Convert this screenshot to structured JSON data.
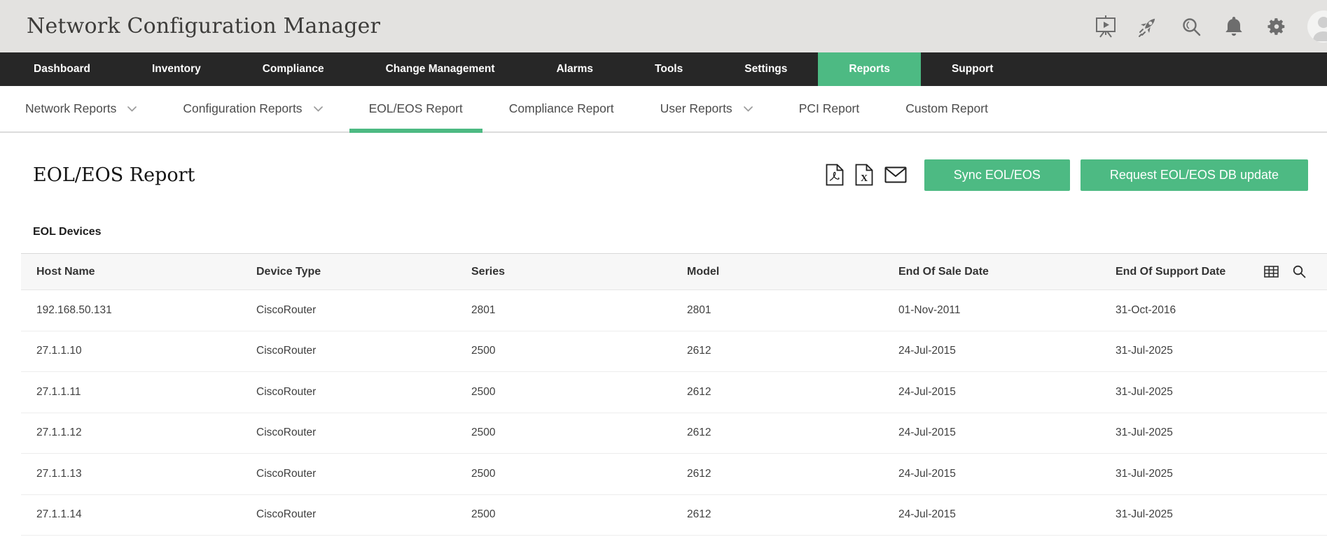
{
  "header": {
    "title": "Network Configuration Manager",
    "icon_names": [
      "demo-video-icon",
      "launch-rocket-icon",
      "global-search-icon",
      "notifications-bell-icon",
      "settings-gear-icon",
      "user-avatar"
    ]
  },
  "nav": {
    "items": [
      {
        "label": "Dashboard",
        "active": false
      },
      {
        "label": "Inventory",
        "active": false
      },
      {
        "label": "Compliance",
        "active": false
      },
      {
        "label": "Change Management",
        "active": false
      },
      {
        "label": "Alarms",
        "active": false
      },
      {
        "label": "Tools",
        "active": false
      },
      {
        "label": "Settings",
        "active": false
      },
      {
        "label": "Reports",
        "active": true
      },
      {
        "label": "Support",
        "active": false
      }
    ]
  },
  "subnav": {
    "items": [
      {
        "label": "Network Reports",
        "dropdown": true,
        "active": false
      },
      {
        "label": "Configuration Reports",
        "dropdown": true,
        "active": false
      },
      {
        "label": "EOL/EOS Report",
        "dropdown": false,
        "active": true
      },
      {
        "label": "Compliance Report",
        "dropdown": false,
        "active": false
      },
      {
        "label": "User Reports",
        "dropdown": true,
        "active": false
      },
      {
        "label": "PCI Report",
        "dropdown": false,
        "active": false
      },
      {
        "label": "Custom Report",
        "dropdown": false,
        "active": false
      }
    ]
  },
  "page": {
    "title": "EOL/EOS Report",
    "export_icon_names": [
      "export-pdf-icon",
      "export-excel-icon",
      "email-report-icon"
    ],
    "buttons": {
      "sync_label": "Sync EOL/EOS",
      "request_label": "Request EOL/EOS DB update"
    }
  },
  "table": {
    "section_title": "EOL Devices",
    "toolbar_icon_names": [
      "column-chooser-grid-icon",
      "table-search-icon"
    ],
    "columns": [
      "Host Name",
      "Device Type",
      "Series",
      "Model",
      "End Of Sale Date",
      "End Of Support Date"
    ],
    "rows": [
      [
        "192.168.50.131",
        "CiscoRouter",
        "2801",
        "2801",
        "01-Nov-2011",
        "31-Oct-2016"
      ],
      [
        "27.1.1.10",
        "CiscoRouter",
        "2500",
        "2612",
        "24-Jul-2015",
        "31-Jul-2025"
      ],
      [
        "27.1.1.11",
        "CiscoRouter",
        "2500",
        "2612",
        "24-Jul-2015",
        "31-Jul-2025"
      ],
      [
        "27.1.1.12",
        "CiscoRouter",
        "2500",
        "2612",
        "24-Jul-2015",
        "31-Jul-2025"
      ],
      [
        "27.1.1.13",
        "CiscoRouter",
        "2500",
        "2612",
        "24-Jul-2015",
        "31-Jul-2025"
      ],
      [
        "27.1.1.14",
        "CiscoRouter",
        "2500",
        "2612",
        "24-Jul-2015",
        "31-Jul-2025"
      ]
    ]
  },
  "colors": {
    "accent": "#4dba83",
    "nav_bg": "#272727",
    "topbar_bg": "#e3e2e0"
  }
}
